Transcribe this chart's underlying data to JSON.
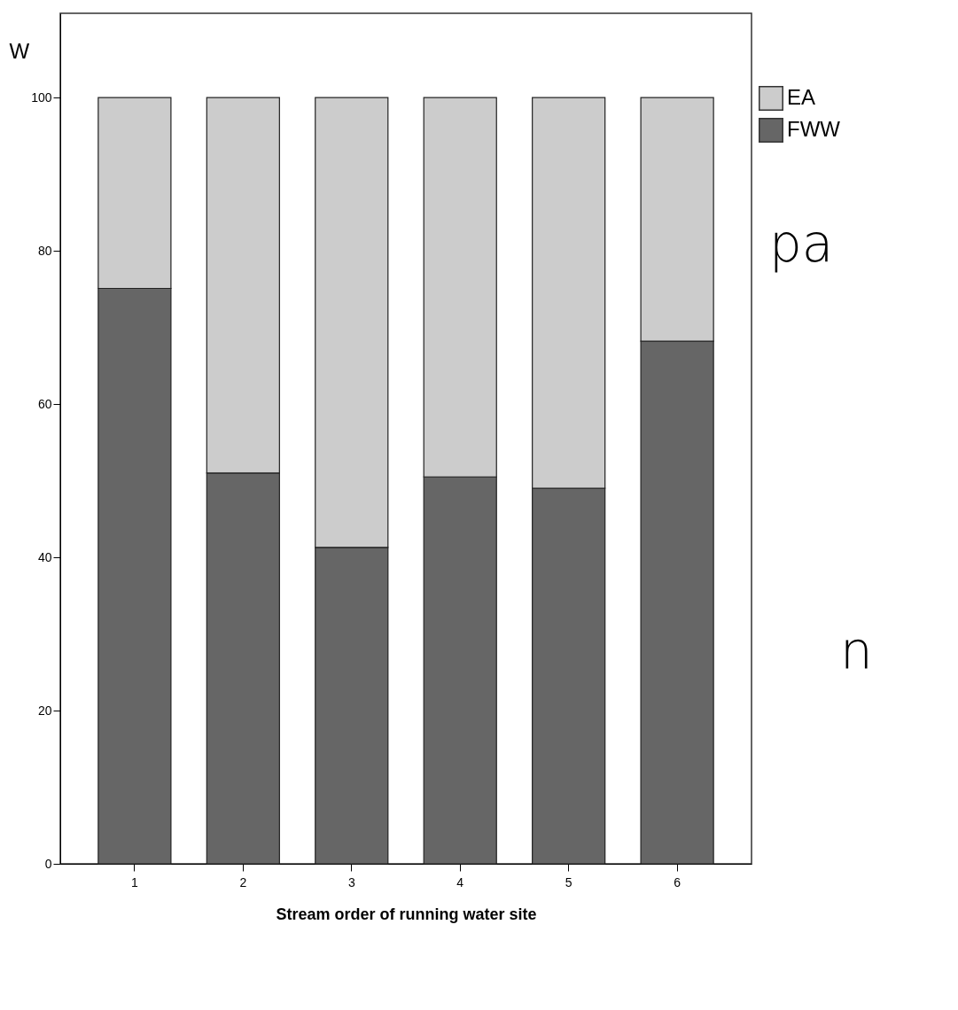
{
  "chart_data": {
    "type": "bar",
    "stacked": true,
    "xlabel": "Stream order of running water site",
    "ylabel": "W",
    "categories": [
      "1",
      "2",
      "3",
      "4",
      "5",
      "6"
    ],
    "series": [
      {
        "name": "FWW",
        "color": "#666666",
        "values": [
          75.1,
          51.0,
          41.3,
          50.5,
          49.0,
          68.2
        ]
      },
      {
        "name": "EA",
        "color": "#cccccc",
        "values": [
          24.9,
          49.0,
          58.7,
          49.5,
          51.0,
          31.8
        ]
      }
    ],
    "ylim": [
      0,
      111
    ],
    "yticks": [
      0,
      20,
      40,
      60,
      80,
      100
    ],
    "grid": false,
    "legend": "top right",
    "annotations": [
      "pa",
      "n"
    ]
  }
}
